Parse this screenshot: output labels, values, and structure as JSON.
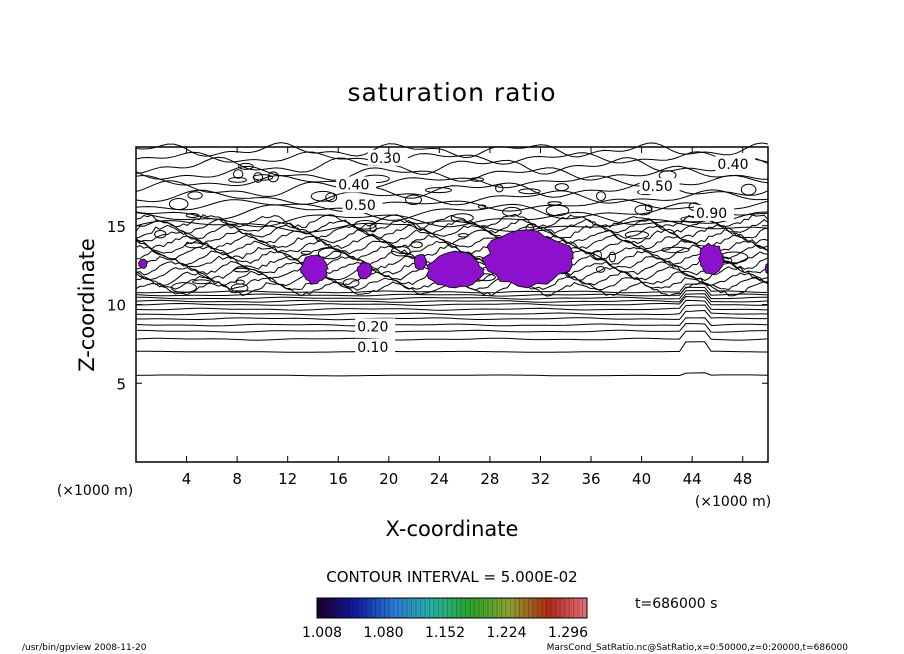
{
  "chart_data": {
    "type": "contour",
    "title": "saturation ratio",
    "xlabel": "X-coordinate",
    "ylabel": "Z-coordinate",
    "x_unit": "(×1000 m)",
    "xlim": [
      0,
      50
    ],
    "ylim": [
      0,
      20
    ],
    "x_ticks": [
      4,
      8,
      12,
      16,
      20,
      24,
      28,
      32,
      36,
      40,
      44,
      48
    ],
    "y_ticks": [
      5,
      10,
      15
    ],
    "contour_interval_text": "CONTOUR INTERVAL = 5.000E-02",
    "time_text": "t=686000 s",
    "colorbar_labels": [
      "1.008",
      "1.080",
      "1.152",
      "1.224",
      "1.296"
    ],
    "colorbar_range": [
      1.008,
      1.296
    ],
    "contour_labels": [
      {
        "text": "0.30",
        "x": 18.5,
        "z": 19.0
      },
      {
        "text": "0.40",
        "x": 16.0,
        "z": 17.3
      },
      {
        "text": "0.50",
        "x": 16.5,
        "z": 16.0
      },
      {
        "text": "0.40",
        "x": 46.0,
        "z": 18.6
      },
      {
        "text": "0.50",
        "x": 40.0,
        "z": 17.2
      },
      {
        "text": "0.90",
        "x": 44.3,
        "z": 15.5
      },
      {
        "text": "0.20",
        "x": 17.5,
        "z": 8.3
      },
      {
        "text": "0.10",
        "x": 17.5,
        "z": 7.0
      }
    ],
    "supersaturated_regions": [
      {
        "x": [
          13.0,
          15.2
        ],
        "z": [
          11.3,
          13.2
        ]
      },
      {
        "x": [
          17.5,
          18.7
        ],
        "z": [
          11.6,
          12.7
        ]
      },
      {
        "x": [
          22.0,
          23.0
        ],
        "z": [
          12.2,
          13.2
        ]
      },
      {
        "x": [
          23.0,
          27.5
        ],
        "z": [
          11.0,
          13.4
        ]
      },
      {
        "x": [
          27.5,
          34.5
        ],
        "z": [
          11.1,
          14.7
        ]
      },
      {
        "x": [
          44.5,
          46.5
        ],
        "z": [
          11.9,
          13.9
        ]
      },
      {
        "x": [
          49.8,
          50.0
        ],
        "z": [
          12.0,
          12.6
        ]
      },
      {
        "x": [
          0.2,
          0.9
        ],
        "z": [
          12.3,
          12.9
        ]
      }
    ],
    "colors": {
      "supersat_fill": "#8d10cc",
      "colorbar_stops": [
        "#1a0024",
        "#0e1aa0",
        "#2a7ad0",
        "#27b0a0",
        "#2aa22a",
        "#8aa030",
        "#b02818",
        "#e0707a"
      ]
    }
  },
  "footer": {
    "left": "/usr/bin/gpview  2008-11-20",
    "right": "MarsCond_SatRatio.nc@SatRatio,x=0:50000,z=0:20000,t=686000"
  }
}
